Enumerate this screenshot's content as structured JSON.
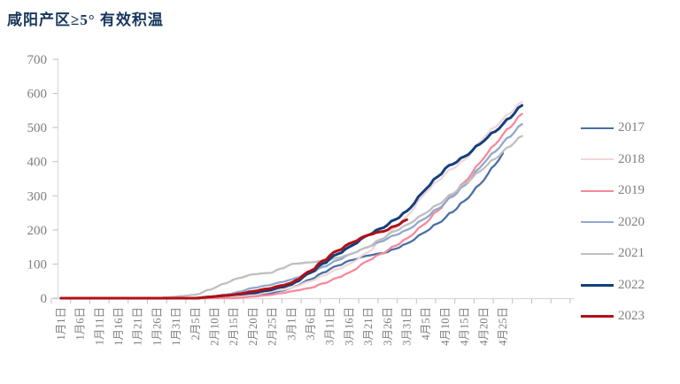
{
  "title": "咸阳产区≥5° 有效积温",
  "chart_data": {
    "type": "line",
    "title": "咸阳产区≥5° 有效积温",
    "xlabel": "",
    "ylabel": "",
    "ylim": [
      0,
      700
    ],
    "y_ticks": [
      0,
      100,
      200,
      300,
      400,
      500,
      600,
      700
    ],
    "grid": false,
    "legend_position": "right",
    "x_interval_days": 5,
    "x_tick_labels": [
      "1月1日",
      "1月6日",
      "1月11日",
      "1月16日",
      "1月21日",
      "1月26日",
      "1月31日",
      "2月5日",
      "2月10日",
      "2月15日",
      "2月20日",
      "2月25日",
      "3月1日",
      "3月6日",
      "3月11日",
      "3月16日",
      "3月21日",
      "3月26日",
      "3月31日",
      "4月5日",
      "4月10日",
      "4月15日",
      "4月20日",
      "4月25日"
    ],
    "series": [
      {
        "name": "2017",
        "color": "#4a6fa5",
        "width": 2.3,
        "values": [
          0,
          0,
          0,
          0,
          0,
          0,
          0,
          0,
          0,
          5,
          10,
          15,
          30,
          55,
          85,
          110,
          125,
          135,
          160,
          195,
          235,
          285,
          345,
          425
        ]
      },
      {
        "name": "2018",
        "color": "#f2d5d8",
        "width": 2.3,
        "values": [
          0,
          0,
          0,
          0,
          0,
          0,
          0,
          0,
          0,
          5,
          10,
          20,
          30,
          50,
          75,
          100,
          135,
          185,
          240,
          310,
          365,
          405,
          470,
          525,
          575
        ]
      },
      {
        "name": "2019",
        "color": "#f48a9b",
        "width": 2.3,
        "values": [
          0,
          0,
          0,
          0,
          0,
          0,
          0,
          0,
          0,
          0,
          5,
          10,
          20,
          30,
          50,
          75,
          110,
          140,
          175,
          220,
          280,
          340,
          410,
          480,
          540
        ]
      },
      {
        "name": "2020",
        "color": "#8fa8ce",
        "width": 2.3,
        "values": [
          0,
          0,
          0,
          0,
          0,
          0,
          0,
          0,
          5,
          15,
          30,
          40,
          55,
          75,
          100,
          128,
          150,
          175,
          200,
          235,
          280,
          330,
          395,
          455,
          510
        ]
      },
      {
        "name": "2021",
        "color": "#bfbfbf",
        "width": 2.3,
        "values": [
          0,
          0,
          0,
          0,
          0,
          0,
          5,
          10,
          30,
          55,
          70,
          75,
          100,
          105,
          112,
          128,
          150,
          185,
          215,
          250,
          290,
          335,
          380,
          430,
          475
        ]
      },
      {
        "name": "2022",
        "color": "#12407e",
        "width": 3,
        "values": [
          0,
          0,
          0,
          0,
          0,
          0,
          0,
          0,
          5,
          10,
          15,
          25,
          40,
          75,
          115,
          150,
          185,
          215,
          255,
          320,
          380,
          415,
          460,
          510,
          565
        ]
      },
      {
        "name": "2023",
        "color": "#b01116",
        "width": 3,
        "values": [
          0,
          0,
          0,
          0,
          0,
          0,
          0,
          0,
          5,
          10,
          20,
          30,
          45,
          80,
          125,
          160,
          185,
          200,
          230
        ]
      }
    ],
    "axis_color": "#d9d9d9",
    "tick_color": "#bfbfbf",
    "tick_text_color": "#7f7f7f"
  }
}
